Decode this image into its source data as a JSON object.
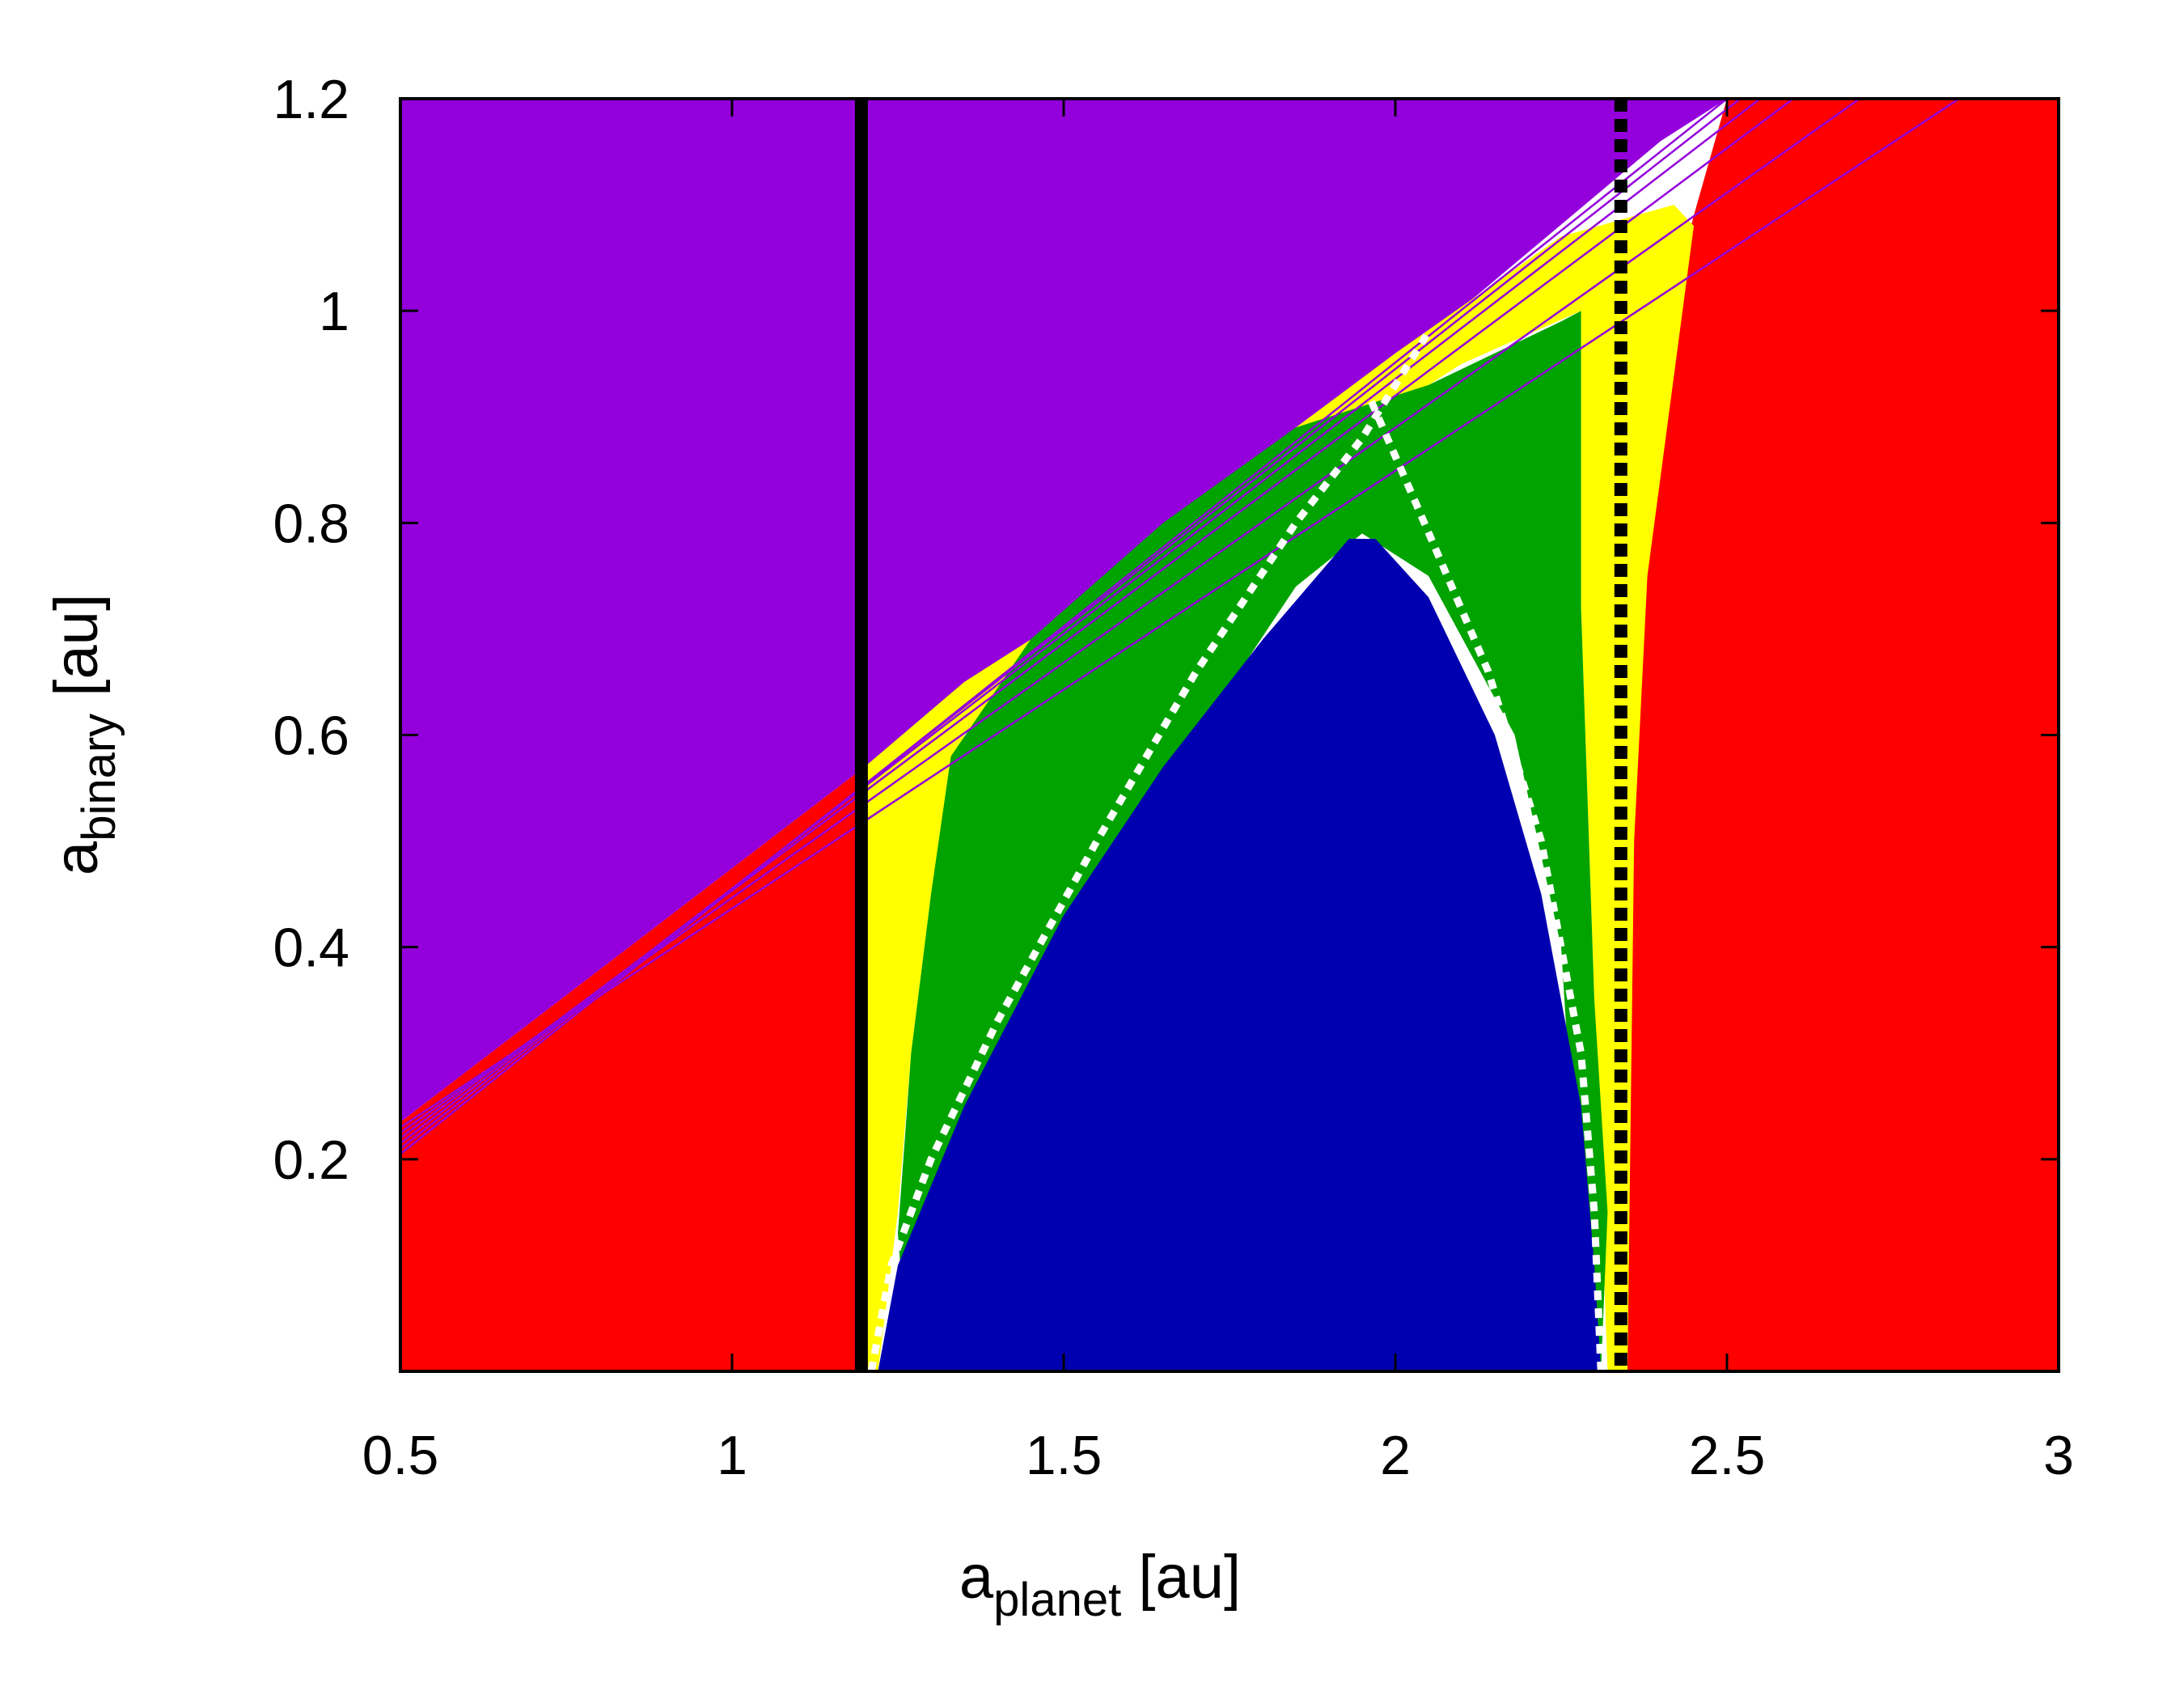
{
  "chart_data": {
    "type": "heatmap",
    "xlabel": {
      "base": "a",
      "sub": "planet",
      "unit": " [au]"
    },
    "ylabel": {
      "base": "a",
      "sub": "binary",
      "unit": " [au]"
    },
    "xlim": [
      0.5,
      3.0
    ],
    "ylim": [
      0.0,
      1.2
    ],
    "x_ticks": [
      {
        "value": 0.5,
        "label": "0.5"
      },
      {
        "value": 1.0,
        "label": "1"
      },
      {
        "value": 1.5,
        "label": "1.5"
      },
      {
        "value": 2.0,
        "label": "2"
      },
      {
        "value": 2.5,
        "label": "2.5"
      },
      {
        "value": 3.0,
        "label": "3"
      }
    ],
    "y_ticks": [
      {
        "value": 0.2,
        "label": "0.2"
      },
      {
        "value": 0.4,
        "label": "0.4"
      },
      {
        "value": 0.6,
        "label": "0.6"
      },
      {
        "value": 0.8,
        "label": "0.8"
      },
      {
        "value": 1.0,
        "label": "1"
      },
      {
        "value": 1.2,
        "label": "1.2"
      }
    ],
    "colors": {
      "purple": "#9400dc",
      "red": "#ff0000",
      "yellow": "#ffff00",
      "green": "#00a300",
      "blue": "#0000b0"
    },
    "regions": [
      {
        "name": "purple-region",
        "color": "purple",
        "points": [
          [
            0.5,
            0.235
          ],
          [
            1.2,
            0.57
          ],
          [
            1.6,
            0.75
          ],
          [
            2.0,
            0.95
          ],
          [
            2.4,
            1.16
          ],
          [
            2.5,
            1.2
          ],
          [
            0.5,
            1.2
          ]
        ]
      },
      {
        "name": "red-left-region",
        "color": "red",
        "points": [
          [
            0.5,
            0.0
          ],
          [
            0.5,
            0.235
          ],
          [
            1.2,
            0.57
          ],
          [
            1.2,
            0.0
          ]
        ]
      },
      {
        "name": "red-right-region",
        "color": "red",
        "points": [
          [
            2.33,
            0.0
          ],
          [
            2.33,
            0.8
          ],
          [
            2.45,
            1.09
          ],
          [
            2.5,
            1.2
          ],
          [
            3.0,
            1.2
          ],
          [
            3.0,
            0.0
          ]
        ]
      },
      {
        "name": "yellow-left-band",
        "color": "yellow",
        "points": [
          [
            1.2,
            0.0
          ],
          [
            1.2,
            0.57
          ],
          [
            1.35,
            0.65
          ],
          [
            1.6,
            0.75
          ],
          [
            1.85,
            0.89
          ],
          [
            2.0,
            0.96
          ],
          [
            2.25,
            1.07
          ],
          [
            2.42,
            1.1
          ],
          [
            2.45,
            1.08
          ],
          [
            2.38,
            0.75
          ],
          [
            2.36,
            0.5
          ],
          [
            2.35,
            0.0
          ],
          [
            2.32,
            0.0
          ],
          [
            2.3,
            0.35
          ],
          [
            2.28,
            0.72
          ],
          [
            2.28,
            1.0
          ],
          [
            2.1,
            0.95
          ],
          [
            1.9,
            0.87
          ],
          [
            1.6,
            0.74
          ],
          [
            1.35,
            0.6
          ],
          [
            1.3,
            0.45
          ],
          [
            1.27,
            0.3
          ],
          [
            1.25,
            0.15
          ],
          [
            1.22,
            0.0
          ]
        ]
      },
      {
        "name": "green-region",
        "color": "green",
        "points": [
          [
            1.25,
            0.13
          ],
          [
            1.27,
            0.3
          ],
          [
            1.3,
            0.45
          ],
          [
            1.33,
            0.58
          ],
          [
            1.45,
            0.69
          ],
          [
            1.65,
            0.8
          ],
          [
            1.85,
            0.89
          ],
          [
            2.05,
            0.93
          ],
          [
            2.25,
            0.99
          ],
          [
            2.28,
            1.0
          ],
          [
            2.28,
            0.72
          ],
          [
            2.3,
            0.35
          ],
          [
            2.32,
            0.15
          ],
          [
            2.31,
            0.0
          ],
          [
            2.28,
            0.0
          ],
          [
            2.27,
            0.2
          ],
          [
            2.25,
            0.4
          ],
          [
            2.18,
            0.6
          ],
          [
            2.05,
            0.75
          ],
          [
            1.95,
            0.79
          ],
          [
            1.85,
            0.74
          ],
          [
            1.68,
            0.58
          ],
          [
            1.5,
            0.4
          ],
          [
            1.35,
            0.22
          ],
          [
            1.26,
            0.05
          ]
        ]
      },
      {
        "name": "blue-island",
        "color": "blue",
        "points": [
          [
            1.22,
            0.0
          ],
          [
            1.25,
            0.1
          ],
          [
            1.35,
            0.25
          ],
          [
            1.5,
            0.43
          ],
          [
            1.65,
            0.57
          ],
          [
            1.8,
            0.69
          ],
          [
            1.93,
            0.785
          ],
          [
            1.97,
            0.785
          ],
          [
            2.05,
            0.73
          ],
          [
            2.15,
            0.6
          ],
          [
            2.22,
            0.45
          ],
          [
            2.28,
            0.25
          ],
          [
            2.3,
            0.1
          ],
          [
            2.31,
            0.0
          ]
        ]
      }
    ],
    "vertical_lines": [
      {
        "name": "inner-boundary-line",
        "x": 1.195,
        "style": "solid"
      },
      {
        "name": "outer-boundary-line",
        "x": 2.34,
        "style": "dashed"
      }
    ],
    "white_curves": [
      {
        "name": "white-dashed-curve-left",
        "points": [
          [
            1.21,
            0.0
          ],
          [
            1.24,
            0.1
          ],
          [
            1.3,
            0.2
          ],
          [
            1.4,
            0.33
          ],
          [
            1.55,
            0.5
          ],
          [
            1.7,
            0.66
          ],
          [
            1.85,
            0.8
          ],
          [
            1.95,
            0.88
          ],
          [
            2.05,
            0.98
          ]
        ]
      },
      {
        "name": "white-dashed-curve-right",
        "points": [
          [
            2.31,
            0.0
          ],
          [
            2.3,
            0.15
          ],
          [
            2.28,
            0.3
          ],
          [
            2.22,
            0.5
          ],
          [
            2.14,
            0.66
          ],
          [
            2.03,
            0.82
          ],
          [
            1.96,
            0.92
          ]
        ]
      }
    ],
    "purple_lines": [
      {
        "name": "purple-thin-line",
        "x0": 0.5,
        "y0": 0.23,
        "x1": 2.85,
        "y1": 1.2
      },
      {
        "name": "purple-thin-line",
        "x0": 0.5,
        "y0": 0.225,
        "x1": 2.7,
        "y1": 1.2
      },
      {
        "name": "purple-thin-line",
        "x0": 0.5,
        "y0": 0.22,
        "x1": 2.6,
        "y1": 1.2
      },
      {
        "name": "purple-thin-line",
        "x0": 0.5,
        "y0": 0.215,
        "x1": 2.55,
        "y1": 1.2
      },
      {
        "name": "purple-thin-line",
        "x0": 0.5,
        "y0": 0.21,
        "x1": 2.52,
        "y1": 1.2
      },
      {
        "name": "purple-thin-line",
        "x0": 0.5,
        "y0": 0.205,
        "x1": 2.5,
        "y1": 1.2
      }
    ]
  }
}
